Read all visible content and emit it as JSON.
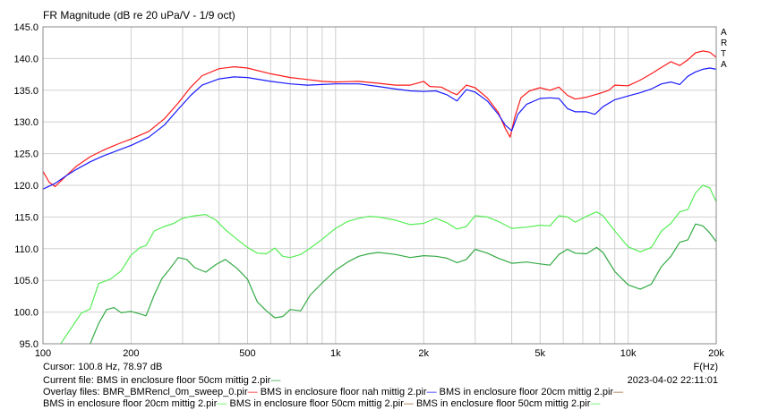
{
  "header": {
    "title": "FR Magnitude (dB re 20 uPa/V - 1/9 oct)",
    "side_letters": [
      "A",
      "R",
      "T",
      "A"
    ]
  },
  "footer": {
    "cursor": "Cursor: 100.8 Hz, 78.97 dB",
    "current_file": "Current file: BMS in enclosure floor 50cm mittig 2.pir",
    "overlay_line1": [
      "Overlay files: BMR_BMRencl_0m_sweep_0.pir",
      "BMS in enclosure floor nah mittig 2.pir",
      "BMS in enclosure floor 20cm mittig 2.pir"
    ],
    "overlay_line2": [
      "BMS in enclosure floor 20cm mittig 2.pir",
      "BMS in enclosure floor 50cm mittig 2.pir",
      "BMS in enclosure floor 50cm mittig 2.pir"
    ],
    "timestamp": "2023-04-02  22:11:01",
    "xunit": "F(Hz)"
  },
  "chart_data": {
    "type": "line",
    "title": "FR Magnitude (dB re 20 uPa/V - 1/9 oct)",
    "xlabel": "F(Hz)",
    "ylabel": "",
    "x_scale": "log",
    "xlim": [
      100,
      20000
    ],
    "ylim": [
      95,
      145
    ],
    "grid": true,
    "y_ticks": [
      "145.0",
      "140.0",
      "135.0",
      "130.0",
      "125.0",
      "120.0",
      "115.0",
      "110.0",
      "105.0",
      "100.0",
      "95.0"
    ],
    "x_ticks": [
      {
        "f": 100,
        "label": "100"
      },
      {
        "f": 200,
        "label": "200"
      },
      {
        "f": 500,
        "label": "500"
      },
      {
        "f": 1000,
        "label": "1k"
      },
      {
        "f": 2000,
        "label": "2k"
      },
      {
        "f": 5000,
        "label": "5k"
      },
      {
        "f": 10000,
        "label": "10k"
      },
      {
        "f": 20000,
        "label": "20k"
      }
    ],
    "colors": {
      "red": "#ff1a1a",
      "blue": "#1a1aff",
      "light_green": "#55ee55",
      "dark_green": "#33aa44",
      "grid": "#d0d0d0",
      "legend_brown": "#996633"
    },
    "series": [
      {
        "color": "#ff1a1a",
        "points": [
          [
            100,
            122.2
          ],
          [
            105,
            120.5
          ],
          [
            110,
            119.8
          ],
          [
            120,
            121.5
          ],
          [
            130,
            123.0
          ],
          [
            145,
            124.5
          ],
          [
            160,
            125.5
          ],
          [
            180,
            126.5
          ],
          [
            200,
            127.3
          ],
          [
            230,
            128.5
          ],
          [
            260,
            130.5
          ],
          [
            290,
            133.0
          ],
          [
            320,
            135.5
          ],
          [
            350,
            137.3
          ],
          [
            400,
            138.4
          ],
          [
            450,
            138.7
          ],
          [
            500,
            138.5
          ],
          [
            600,
            137.6
          ],
          [
            700,
            137.0
          ],
          [
            800,
            136.7
          ],
          [
            900,
            136.4
          ],
          [
            1000,
            136.3
          ],
          [
            1200,
            136.4
          ],
          [
            1400,
            136.1
          ],
          [
            1600,
            135.8
          ],
          [
            1800,
            135.8
          ],
          [
            2000,
            136.4
          ],
          [
            2100,
            135.6
          ],
          [
            2300,
            135.5
          ],
          [
            2500,
            134.6
          ],
          [
            2600,
            134.3
          ],
          [
            2800,
            135.8
          ],
          [
            3000,
            135.4
          ],
          [
            3300,
            133.8
          ],
          [
            3600,
            131.5
          ],
          [
            3800,
            129.0
          ],
          [
            3950,
            127.6
          ],
          [
            4100,
            130.8
          ],
          [
            4300,
            133.8
          ],
          [
            4600,
            134.9
          ],
          [
            5000,
            135.4
          ],
          [
            5400,
            135.0
          ],
          [
            5800,
            135.5
          ],
          [
            6200,
            134.2
          ],
          [
            6600,
            133.6
          ],
          [
            7200,
            133.9
          ],
          [
            8000,
            134.5
          ],
          [
            8600,
            135.0
          ],
          [
            9000,
            135.8
          ],
          [
            10000,
            135.7
          ],
          [
            11000,
            136.6
          ],
          [
            12000,
            137.6
          ],
          [
            13000,
            138.6
          ],
          [
            14000,
            139.5
          ],
          [
            15000,
            138.9
          ],
          [
            16000,
            139.8
          ],
          [
            17000,
            140.9
          ],
          [
            18000,
            141.2
          ],
          [
            19000,
            141.0
          ],
          [
            20000,
            140.2
          ]
        ]
      },
      {
        "color": "#1a1aff",
        "points": [
          [
            100,
            119.4
          ],
          [
            110,
            120.3
          ],
          [
            120,
            121.5
          ],
          [
            130,
            122.5
          ],
          [
            145,
            123.7
          ],
          [
            160,
            124.6
          ],
          [
            180,
            125.5
          ],
          [
            200,
            126.3
          ],
          [
            230,
            127.6
          ],
          [
            260,
            129.5
          ],
          [
            290,
            132.0
          ],
          [
            320,
            134.2
          ],
          [
            350,
            135.8
          ],
          [
            400,
            136.8
          ],
          [
            450,
            137.1
          ],
          [
            500,
            137.0
          ],
          [
            600,
            136.4
          ],
          [
            700,
            136.0
          ],
          [
            800,
            135.8
          ],
          [
            900,
            135.9
          ],
          [
            1000,
            136.0
          ],
          [
            1200,
            136.0
          ],
          [
            1400,
            135.6
          ],
          [
            1600,
            135.2
          ],
          [
            1800,
            134.9
          ],
          [
            2000,
            134.8
          ],
          [
            2200,
            134.9
          ],
          [
            2400,
            134.3
          ],
          [
            2600,
            133.3
          ],
          [
            2800,
            135.1
          ],
          [
            3000,
            134.7
          ],
          [
            3300,
            133.3
          ],
          [
            3600,
            131.2
          ],
          [
            3800,
            129.5
          ],
          [
            4000,
            128.6
          ],
          [
            4200,
            131.2
          ],
          [
            4500,
            132.8
          ],
          [
            5000,
            133.7
          ],
          [
            5400,
            133.8
          ],
          [
            5800,
            133.7
          ],
          [
            6200,
            132.1
          ],
          [
            6600,
            131.6
          ],
          [
            7200,
            131.6
          ],
          [
            7700,
            131.2
          ],
          [
            8200,
            132.4
          ],
          [
            9000,
            133.5
          ],
          [
            10000,
            134.1
          ],
          [
            11000,
            134.6
          ],
          [
            12000,
            135.2
          ],
          [
            13000,
            136.0
          ],
          [
            14000,
            136.3
          ],
          [
            15000,
            135.9
          ],
          [
            16000,
            137.2
          ],
          [
            17000,
            137.9
          ],
          [
            18000,
            138.3
          ],
          [
            19000,
            138.5
          ],
          [
            20000,
            138.3
          ]
        ]
      },
      {
        "color": "#55ee55",
        "points": [
          [
            115,
            95.0
          ],
          [
            125,
            97.5
          ],
          [
            135,
            99.8
          ],
          [
            145,
            100.5
          ],
          [
            155,
            104.5
          ],
          [
            170,
            105.2
          ],
          [
            185,
            106.5
          ],
          [
            200,
            109.0
          ],
          [
            215,
            110.2
          ],
          [
            225,
            110.5
          ],
          [
            240,
            112.8
          ],
          [
            260,
            113.5
          ],
          [
            280,
            114.0
          ],
          [
            300,
            114.8
          ],
          [
            330,
            115.2
          ],
          [
            360,
            115.4
          ],
          [
            390,
            114.5
          ],
          [
            420,
            113.0
          ],
          [
            460,
            111.5
          ],
          [
            500,
            110.2
          ],
          [
            540,
            109.3
          ],
          [
            580,
            109.2
          ],
          [
            620,
            110.1
          ],
          [
            660,
            108.8
          ],
          [
            700,
            108.6
          ],
          [
            760,
            109.1
          ],
          [
            820,
            110.1
          ],
          [
            900,
            111.5
          ],
          [
            1000,
            113.2
          ],
          [
            1100,
            114.3
          ],
          [
            1200,
            114.8
          ],
          [
            1300,
            115.1
          ],
          [
            1400,
            115.0
          ],
          [
            1600,
            114.5
          ],
          [
            1800,
            113.8
          ],
          [
            2000,
            114.0
          ],
          [
            2200,
            114.8
          ],
          [
            2400,
            114.1
          ],
          [
            2600,
            113.1
          ],
          [
            2800,
            113.5
          ],
          [
            3000,
            115.2
          ],
          [
            3300,
            115.0
          ],
          [
            3600,
            114.3
          ],
          [
            4000,
            113.2
          ],
          [
            4500,
            113.4
          ],
          [
            5000,
            113.7
          ],
          [
            5400,
            113.6
          ],
          [
            5800,
            115.2
          ],
          [
            6200,
            115.0
          ],
          [
            6600,
            114.2
          ],
          [
            7200,
            115.1
          ],
          [
            7800,
            115.8
          ],
          [
            8200,
            115.2
          ],
          [
            9000,
            112.8
          ],
          [
            10000,
            110.3
          ],
          [
            11000,
            109.5
          ],
          [
            12000,
            110.2
          ],
          [
            13000,
            112.8
          ],
          [
            14000,
            114.0
          ],
          [
            15000,
            115.8
          ],
          [
            16000,
            116.2
          ],
          [
            17000,
            118.8
          ],
          [
            18000,
            120.0
          ],
          [
            19000,
            119.6
          ],
          [
            20000,
            117.4
          ]
        ]
      },
      {
        "color": "#33aa44",
        "points": [
          [
            145,
            95.0
          ],
          [
            155,
            98.2
          ],
          [
            165,
            100.4
          ],
          [
            175,
            100.7
          ],
          [
            185,
            99.9
          ],
          [
            200,
            100.1
          ],
          [
            215,
            99.7
          ],
          [
            225,
            99.4
          ],
          [
            240,
            102.7
          ],
          [
            255,
            105.3
          ],
          [
            270,
            106.7
          ],
          [
            290,
            108.6
          ],
          [
            310,
            108.3
          ],
          [
            330,
            107.0
          ],
          [
            360,
            106.3
          ],
          [
            390,
            107.5
          ],
          [
            420,
            108.3
          ],
          [
            460,
            106.9
          ],
          [
            500,
            105.2
          ],
          [
            540,
            101.6
          ],
          [
            580,
            100.2
          ],
          [
            620,
            99.1
          ],
          [
            660,
            99.3
          ],
          [
            700,
            100.4
          ],
          [
            760,
            100.2
          ],
          [
            820,
            102.7
          ],
          [
            900,
            104.6
          ],
          [
            1000,
            106.6
          ],
          [
            1100,
            107.9
          ],
          [
            1200,
            108.8
          ],
          [
            1300,
            109.2
          ],
          [
            1400,
            109.4
          ],
          [
            1600,
            109.1
          ],
          [
            1800,
            108.6
          ],
          [
            2000,
            108.9
          ],
          [
            2200,
            108.8
          ],
          [
            2400,
            108.5
          ],
          [
            2600,
            107.8
          ],
          [
            2800,
            108.3
          ],
          [
            3000,
            109.9
          ],
          [
            3300,
            109.3
          ],
          [
            3600,
            108.5
          ],
          [
            4000,
            107.7
          ],
          [
            4500,
            107.9
          ],
          [
            5000,
            107.6
          ],
          [
            5400,
            107.4
          ],
          [
            5800,
            109.1
          ],
          [
            6200,
            109.9
          ],
          [
            6600,
            109.3
          ],
          [
            7200,
            109.2
          ],
          [
            7800,
            110.2
          ],
          [
            8200,
            109.4
          ],
          [
            9000,
            106.4
          ],
          [
            10000,
            104.3
          ],
          [
            11000,
            103.6
          ],
          [
            12000,
            104.4
          ],
          [
            13000,
            107.2
          ],
          [
            14000,
            108.8
          ],
          [
            15000,
            111.0
          ],
          [
            16000,
            111.4
          ],
          [
            17000,
            113.9
          ],
          [
            18000,
            113.6
          ],
          [
            19000,
            112.5
          ],
          [
            20000,
            111.1
          ]
        ]
      }
    ]
  }
}
